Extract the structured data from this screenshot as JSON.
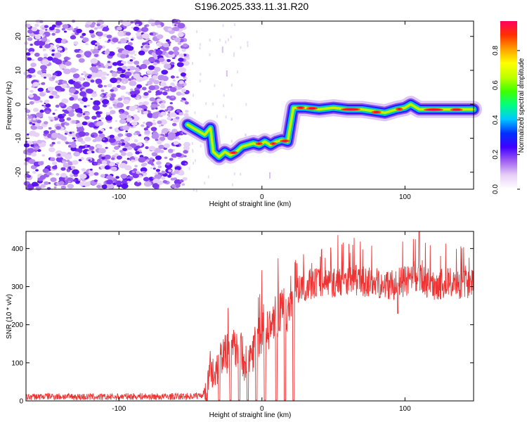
{
  "title": "S196.2025.333.11.31.R20",
  "chart_data": [
    {
      "type": "heatmap",
      "panel": "top",
      "xlabel": "Height of straight line (km)",
      "ylabel": "Frequency (Hz)",
      "xlim": [
        -165,
        148
      ],
      "ylim": [
        -25,
        24.5
      ],
      "xticks": [
        -100,
        0,
        100
      ],
      "xtick_labels": [
        "-100",
        "0",
        "100"
      ],
      "yticks": [
        -20,
        -10,
        0,
        10,
        20
      ],
      "ytick_labels": [
        "-20",
        "-10",
        "0",
        "10",
        "20"
      ],
      "noise_region_x": [
        -165,
        -52
      ],
      "track": [
        {
          "x": -52,
          "y": -6
        },
        {
          "x": -48,
          "y": -7
        },
        {
          "x": -44,
          "y": -8
        },
        {
          "x": -40,
          "y": -9
        },
        {
          "x": -36,
          "y": -7
        },
        {
          "x": -34,
          "y": -14
        },
        {
          "x": -30,
          "y": -15.5
        },
        {
          "x": -26,
          "y": -14
        },
        {
          "x": -22,
          "y": -15
        },
        {
          "x": -18,
          "y": -14
        },
        {
          "x": -14,
          "y": -12.5
        },
        {
          "x": -10,
          "y": -12
        },
        {
          "x": -6,
          "y": -11.5
        },
        {
          "x": -2,
          "y": -12
        },
        {
          "x": 2,
          "y": -11
        },
        {
          "x": 6,
          "y": -12
        },
        {
          "x": 10,
          "y": -11
        },
        {
          "x": 14,
          "y": -10.5
        },
        {
          "x": 18,
          "y": -11
        },
        {
          "x": 22,
          "y": -1
        },
        {
          "x": 30,
          "y": -1
        },
        {
          "x": 40,
          "y": -1.5
        },
        {
          "x": 50,
          "y": -1
        },
        {
          "x": 60,
          "y": -1.5
        },
        {
          "x": 70,
          "y": -1.5
        },
        {
          "x": 78,
          "y": -2
        },
        {
          "x": 86,
          "y": -2.5
        },
        {
          "x": 94,
          "y": -1.5
        },
        {
          "x": 100,
          "y": -1
        },
        {
          "x": 104,
          "y": 0
        },
        {
          "x": 110,
          "y": -1.5
        },
        {
          "x": 120,
          "y": -1.5
        },
        {
          "x": 130,
          "y": -1.5
        },
        {
          "x": 140,
          "y": -1.5
        },
        {
          "x": 148,
          "y": -1.5
        }
      ],
      "colorbar": {
        "label": "Normalized spectral amplitude",
        "min": 0.0,
        "max": 0.97,
        "ticks": [
          0.0,
          0.2,
          0.4,
          0.6,
          0.8
        ],
        "tick_labels": [
          "0.0",
          "0.2",
          "0.4",
          "0.6",
          "0.8"
        ],
        "colors": [
          "#ffffff",
          "#e8d0f8",
          "#a060f0",
          "#4000ff",
          "#0030ff",
          "#00c8ff",
          "#00ff80",
          "#40ff00",
          "#c0ff00",
          "#ffff00",
          "#ffa000",
          "#ff3000",
          "#ff0060"
        ]
      }
    },
    {
      "type": "line",
      "panel": "bottom",
      "xlabel": "Height of straight line (km)",
      "ylabel": "SNR (10 * v/v)",
      "xlim": [
        -165,
        148
      ],
      "ylim": [
        0,
        445
      ],
      "xticks": [
        -100,
        0,
        100
      ],
      "xtick_labels": [
        "-100",
        "0",
        "100"
      ],
      "yticks": [
        0,
        100,
        200,
        300,
        400
      ],
      "ytick_labels": [
        "0",
        "100",
        "200",
        "300",
        "400"
      ],
      "color": "#ee3333",
      "series": [
        {
          "name": "SNR",
          "x": [
            -165,
            -150,
            -130,
            -110,
            -90,
            -70,
            -50,
            -42,
            -38,
            -34,
            -30,
            -26,
            -22,
            -18,
            -14,
            -10,
            -6,
            -2,
            2,
            6,
            10,
            14,
            18,
            20,
            24,
            28,
            32,
            40,
            50,
            60,
            70,
            80,
            90,
            100,
            110,
            120,
            130,
            140,
            148
          ],
          "values": [
            10,
            12,
            11,
            10,
            12,
            11,
            12,
            15,
            40,
            80,
            100,
            140,
            110,
            150,
            120,
            100,
            140,
            175,
            180,
            195,
            220,
            235,
            240,
            250,
            275,
            290,
            300,
            310,
            305,
            315,
            310,
            305,
            300,
            310,
            315,
            300,
            305,
            300,
            310
          ]
        }
      ],
      "dropouts_x": [
        -30,
        -22,
        -16,
        -10,
        -4,
        2,
        10,
        16,
        22
      ]
    }
  ]
}
